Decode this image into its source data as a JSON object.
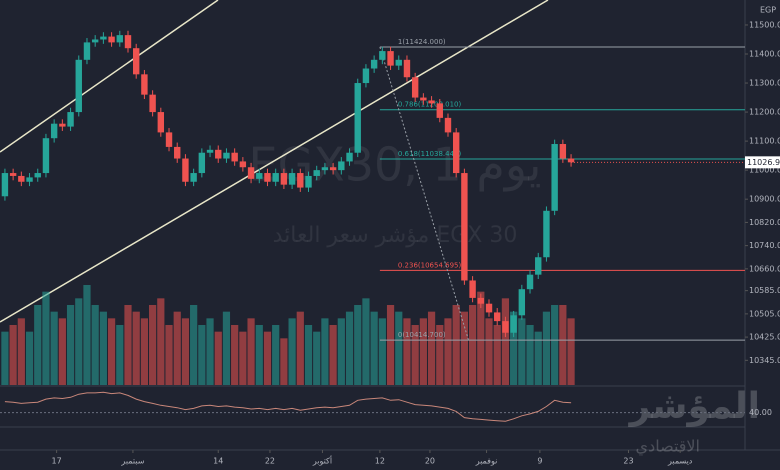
{
  "chart_data": {
    "type": "candlestick",
    "currency": "EGP",
    "watermark_title": "EGX30, 1 يوم",
    "watermark_subtitle": "مؤشر سعر العائد EGX 30",
    "logo_title": "المؤشر",
    "logo_subtitle": "الاقتصادي",
    "up_color": "#26a69a",
    "down_color": "#ef5350",
    "xlim": [
      -0.6,
      90.2
    ],
    "xticks": [
      {
        "value": 6.3,
        "label": "17"
      },
      {
        "value": 15.6,
        "label": "سبتمبر"
      },
      {
        "value": 26,
        "label": "14"
      },
      {
        "value": 32.3,
        "label": "22"
      },
      {
        "value": 38.7,
        "label": "أكتوبر"
      },
      {
        "value": 45.7,
        "label": "12"
      },
      {
        "value": 51.8,
        "label": "20"
      },
      {
        "value": 58.7,
        "label": "نوفمبر"
      },
      {
        "value": 65.2,
        "label": "9"
      },
      {
        "value": 76,
        "label": "23"
      },
      {
        "value": 82.3,
        "label": "ديسمبر"
      }
    ],
    "ylim": [
      10260,
      11586
    ],
    "yticks": [
      {
        "value": 11500,
        "label": "11500.00"
      },
      {
        "value": 11400,
        "label": "11400.00"
      },
      {
        "value": 11300,
        "label": "11300.00"
      },
      {
        "value": 11200,
        "label": "11200.00"
      },
      {
        "value": 11100,
        "label": "11100.00"
      },
      {
        "value": 11000,
        "label": "11000.00"
      },
      {
        "value": 10900,
        "label": "10900.00"
      },
      {
        "value": 10820,
        "label": "10820.00"
      },
      {
        "value": 10740,
        "label": "10740.00"
      },
      {
        "value": 10660,
        "label": "10660.00"
      },
      {
        "value": 10585,
        "label": "10585.00"
      },
      {
        "value": 10505,
        "label": "10505.00"
      },
      {
        "value": 10425,
        "label": "10425.00"
      },
      {
        "value": 10345,
        "label": "10345.00"
      }
    ],
    "open": [
      10910,
      10990,
      10980,
      10960,
      10975,
      10990,
      11110,
      11160,
      11150,
      11200,
      11380,
      11440,
      11450,
      11460,
      11440,
      11465,
      11420,
      11330,
      11260,
      11200,
      11130,
      11080,
      11040,
      10960,
      10990,
      11060,
      11070,
      11040,
      11060,
      11030,
      11010,
      10970,
      10990,
      10960,
      10990,
      10950,
      10990,
      10940,
      10980,
      11000,
      11010,
      11000,
      11030,
      11060,
      11300,
      11350,
      11380,
      11410,
      11360,
      11380,
      11320,
      11250,
      11240,
      11230,
      11180,
      11130,
      10990,
      10620,
      10560,
      10540,
      10510,
      10480,
      10440,
      10500,
      10590,
      10640,
      10700,
      10860,
      11090,
      11040
    ],
    "high": [
      11005,
      11005,
      10995,
      10990,
      11005,
      11125,
      11175,
      11175,
      11215,
      11395,
      11455,
      11465,
      11475,
      11475,
      11480,
      11480,
      11435,
      11345,
      11275,
      11215,
      11145,
      11095,
      11055,
      11005,
      11075,
      11085,
      11085,
      11075,
      11075,
      11045,
      11025,
      11005,
      11005,
      11005,
      11005,
      11005,
      11005,
      10995,
      11015,
      11025,
      11025,
      11045,
      11075,
      11315,
      11365,
      11395,
      11425,
      11425,
      11395,
      11395,
      11335,
      11265,
      11255,
      11245,
      11195,
      11145,
      11005,
      10635,
      10575,
      10555,
      10525,
      10495,
      10515,
      10605,
      10655,
      10715,
      10875,
      11105,
      11105,
      11055
    ],
    "low": [
      10895,
      10965,
      10945,
      10945,
      10960,
      10975,
      11095,
      11135,
      11135,
      11185,
      11365,
      11425,
      11435,
      11425,
      11425,
      11405,
      11315,
      11245,
      11185,
      11115,
      11065,
      11025,
      10945,
      10945,
      10975,
      11045,
      11025,
      11025,
      11015,
      10995,
      10955,
      10955,
      10945,
      10945,
      10935,
      10935,
      10925,
      10925,
      10965,
      10985,
      10985,
      10985,
      11015,
      11045,
      11285,
      11335,
      11365,
      11345,
      11345,
      11305,
      11235,
      11225,
      11215,
      11165,
      11115,
      10975,
      10605,
      10545,
      10525,
      10495,
      10465,
      10425,
      10425,
      10485,
      10575,
      10625,
      10685,
      10845,
      11025,
      11012
    ],
    "close": [
      10990,
      10980,
      10960,
      10975,
      10990,
      11110,
      11160,
      11150,
      11200,
      11380,
      11440,
      11450,
      11460,
      11440,
      11465,
      11420,
      11330,
      11260,
      11200,
      11130,
      11080,
      11040,
      10960,
      10990,
      11060,
      11070,
      11040,
      11060,
      11030,
      11010,
      10970,
      10990,
      10960,
      10990,
      10950,
      10990,
      10940,
      10980,
      11000,
      11010,
      11000,
      11030,
      11060,
      11300,
      11350,
      11380,
      11410,
      11360,
      11380,
      11320,
      11250,
      11240,
      11230,
      11180,
      11130,
      10990,
      10620,
      10560,
      10540,
      10510,
      10480,
      10440,
      10500,
      10590,
      10640,
      10700,
      10860,
      11090,
      11040,
      11026.9
    ],
    "last_price_label": "11026.90",
    "volume": [
      40,
      45,
      50,
      40,
      60,
      70,
      55,
      50,
      60,
      65,
      75,
      60,
      55,
      50,
      45,
      60,
      55,
      50,
      60,
      65,
      45,
      55,
      50,
      60,
      45,
      50,
      40,
      55,
      45,
      40,
      50,
      45,
      40,
      45,
      35,
      50,
      55,
      45,
      40,
      50,
      45,
      50,
      55,
      60,
      65,
      55,
      50,
      60,
      55,
      50,
      45,
      50,
      55,
      45,
      50,
      60,
      55,
      60,
      70,
      50,
      45,
      65,
      55,
      50,
      45,
      40,
      55,
      60,
      60,
      50
    ],
    "fib_levels": [
      {
        "value": 11424,
        "label": "1(11424.000)",
        "color": "#9aa0a8"
      },
      {
        "value": 11208.01,
        "label": "0.786(11208.010)",
        "color": "#26a69a"
      },
      {
        "value": 11038.447,
        "label": "0.618(11038.447)",
        "color": "#26a69a"
      },
      {
        "value": 10654.695,
        "label": "0.236(10654.695)",
        "color": "#ef5350"
      },
      {
        "value": 10414.7,
        "label": "0(10414.700)",
        "color": "#9aa0a8"
      }
    ],
    "fib_start": 45.7,
    "oscillator": {
      "values": [
        58,
        57,
        55,
        56,
        57,
        62,
        64,
        63,
        65,
        70,
        72,
        72,
        73,
        71,
        72,
        68,
        62,
        58,
        55,
        52,
        50,
        48,
        45,
        47,
        51,
        52,
        50,
        51,
        49,
        48,
        46,
        47,
        45,
        47,
        45,
        47,
        44,
        46,
        48,
        49,
        48,
        50,
        52,
        60,
        62,
        63,
        64,
        60,
        61,
        57,
        53,
        52,
        51,
        49,
        47,
        42,
        32,
        30,
        29,
        28,
        27,
        26,
        30,
        35,
        38,
        42,
        50,
        60,
        57,
        56
      ],
      "color": "#c9877a",
      "ylim": [
        20,
        80
      ],
      "yticks": [
        {
          "value": 40,
          "label": "40.00"
        }
      ]
    }
  }
}
